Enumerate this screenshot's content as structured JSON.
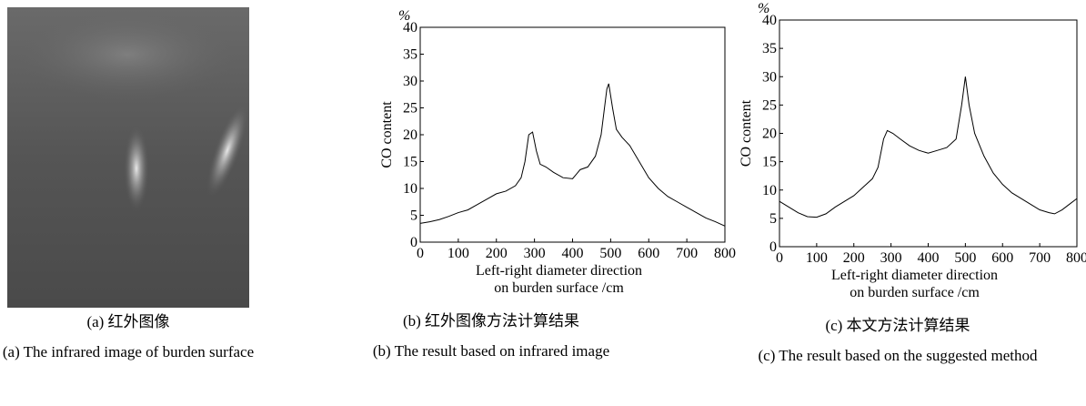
{
  "image_panel": {
    "caption_cn": "(a) 红外图像",
    "caption_en": "(a) The infrared image of burden surface"
  },
  "chart_data": [
    {
      "type": "line",
      "ylabel": "CO content",
      "y_unit": "%",
      "xlabel": [
        "Left-right diameter direction",
        "on  burden surface /cm"
      ],
      "caption_cn": "(b) 红外图像方法计算结果",
      "caption_en": "(b) The result based on infrared image",
      "x": [
        0,
        25,
        50,
        75,
        100,
        125,
        150,
        175,
        200,
        225,
        250,
        265,
        275,
        285,
        295,
        305,
        315,
        330,
        350,
        375,
        400,
        420,
        440,
        460,
        475,
        490,
        495,
        505,
        515,
        530,
        550,
        575,
        600,
        625,
        650,
        675,
        700,
        725,
        750,
        775,
        800
      ],
      "values": [
        3.5,
        3.8,
        4.2,
        4.8,
        5.5,
        6,
        7,
        8,
        9,
        9.5,
        10.5,
        12,
        15,
        20,
        20.5,
        17,
        14.5,
        14,
        13,
        12,
        11.8,
        13.5,
        14,
        16,
        20,
        28.5,
        29.5,
        25,
        21,
        19.5,
        18,
        15,
        12,
        10,
        8.5,
        7.5,
        6.5,
        5.5,
        4.5,
        3.8,
        3
      ],
      "color": "#000000",
      "xlim": [
        0,
        800
      ],
      "ylim": [
        0,
        40
      ],
      "xticks": [
        0,
        100,
        200,
        300,
        400,
        500,
        600,
        700,
        800
      ],
      "yticks": [
        0,
        5,
        10,
        15,
        20,
        25,
        30,
        35,
        40
      ]
    },
    {
      "type": "line",
      "ylabel": "CO content",
      "y_unit": "%",
      "xlabel": [
        "Left-right diameter direction",
        "on  burden surface /cm"
      ],
      "caption_cn": "(c) 本文方法计算结果",
      "caption_en": "(c) The result based on the suggested method",
      "x": [
        0,
        25,
        50,
        75,
        100,
        125,
        150,
        175,
        200,
        225,
        250,
        265,
        280,
        290,
        305,
        325,
        350,
        375,
        400,
        425,
        450,
        475,
        490,
        500,
        510,
        525,
        550,
        575,
        600,
        625,
        650,
        675,
        700,
        725,
        740,
        760,
        780,
        800
      ],
      "values": [
        8,
        7,
        6,
        5.3,
        5.2,
        5.8,
        7,
        8,
        9,
        10.5,
        12,
        14,
        19,
        20.5,
        20,
        19,
        17.8,
        17,
        16.5,
        17,
        17.5,
        19,
        25,
        30,
        25,
        20,
        16,
        13,
        11,
        9.5,
        8.5,
        7.5,
        6.5,
        6,
        5.8,
        6.5,
        7.5,
        8.5
      ],
      "color": "#000000",
      "xlim": [
        0,
        800
      ],
      "ylim": [
        0,
        40
      ],
      "xticks": [
        0,
        100,
        200,
        300,
        400,
        500,
        600,
        700,
        800
      ],
      "yticks": [
        0,
        5,
        10,
        15,
        20,
        25,
        30,
        35,
        40
      ]
    }
  ]
}
